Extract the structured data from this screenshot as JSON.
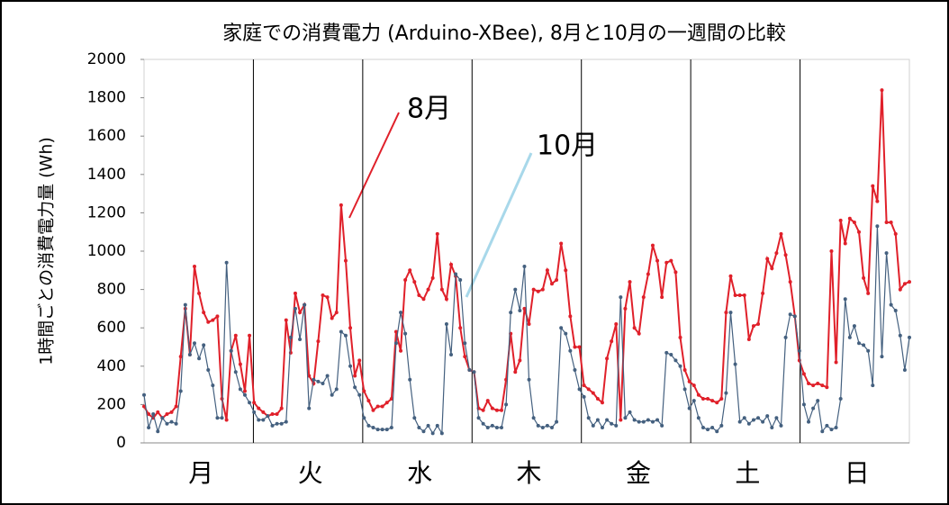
{
  "chart_data": {
    "type": "line",
    "title": "家庭での消費電力 (Arduino-XBee), 8月と10月の一週間の比較",
    "y_label": "1時間ごとの消費電力量 (Wh)",
    "categories": [
      null,
      null,
      null,
      null,
      null,
      null,
      null,
      null,
      null,
      null,
      null,
      null,
      "月",
      null,
      null,
      null,
      null,
      null,
      null,
      null,
      null,
      null,
      null,
      null,
      null,
      null,
      null,
      null,
      null,
      null,
      null,
      null,
      null,
      null,
      null,
      null,
      "火",
      null,
      null,
      null,
      null,
      null,
      null,
      null,
      null,
      null,
      null,
      null,
      null,
      null,
      null,
      null,
      null,
      null,
      null,
      null,
      null,
      null,
      null,
      null,
      "水",
      null,
      null,
      null,
      null,
      null,
      null,
      null,
      null,
      null,
      null,
      null,
      null,
      null,
      null,
      null,
      null,
      null,
      null,
      null,
      null,
      null,
      null,
      null,
      "木",
      null,
      null,
      null,
      null,
      null,
      null,
      null,
      null,
      null,
      null,
      null,
      null,
      null,
      null,
      null,
      null,
      null,
      null,
      null,
      null,
      null,
      null,
      null,
      "金",
      null,
      null,
      null,
      null,
      null,
      null,
      null,
      null,
      null,
      null,
      null,
      null,
      null,
      null,
      null,
      null,
      null,
      null,
      null,
      null,
      null,
      null,
      null,
      "土",
      null,
      null,
      null,
      null,
      null,
      null,
      null,
      null,
      null,
      null,
      null,
      null,
      null,
      null,
      null,
      null,
      null,
      null,
      null,
      null,
      null,
      null,
      null,
      "日",
      null,
      null,
      null,
      null,
      null,
      null,
      null,
      null,
      null,
      null,
      null
    ],
    "series": [
      {
        "name": "8月",
        "color": "#e0202a",
        "label_color": "#e0202a",
        "values": [
          190,
          150,
          130,
          160,
          130,
          150,
          160,
          190,
          450,
          700,
          460,
          920,
          780,
          680,
          630,
          640,
          660,
          230,
          120,
          480,
          560,
          410,
          270,
          560,
          210,
          180,
          160,
          140,
          150,
          150,
          180,
          640,
          470,
          780,
          680,
          720,
          350,
          310,
          530,
          770,
          760,
          650,
          680,
          1240,
          950,
          600,
          350,
          430,
          270,
          220,
          170,
          190,
          190,
          210,
          230,
          580,
          480,
          850,
          900,
          840,
          770,
          750,
          800,
          860,
          1090,
          800,
          750,
          930,
          870,
          600,
          450,
          380,
          370,
          180,
          170,
          220,
          180,
          170,
          170,
          330,
          570,
          370,
          430,
          700,
          620,
          800,
          790,
          800,
          900,
          830,
          850,
          1040,
          900,
          660,
          500,
          500,
          300,
          280,
          260,
          230,
          210,
          440,
          530,
          620,
          120,
          700,
          840,
          600,
          570,
          760,
          880,
          1030,
          950,
          760,
          940,
          950,
          890,
          550,
          380,
          320,
          300,
          250,
          230,
          230,
          220,
          210,
          230,
          680,
          870,
          770,
          770,
          770,
          540,
          610,
          620,
          780,
          960,
          910,
          990,
          1090,
          980,
          840,
          660,
          430,
          360,
          310,
          300,
          310,
          300,
          290,
          1000,
          420,
          1160,
          1040,
          1170,
          1150,
          1100,
          860,
          780,
          1340,
          1260,
          1840,
          1150,
          1150,
          1090,
          800,
          830,
          840
        ]
      },
      {
        "name": "10月",
        "color": "#44607f",
        "label_color": "#2aa8d8",
        "values": [
          250,
          80,
          150,
          60,
          130,
          100,
          110,
          100,
          270,
          720,
          460,
          520,
          440,
          510,
          380,
          300,
          130,
          130,
          940,
          480,
          370,
          280,
          250,
          210,
          160,
          120,
          120,
          140,
          90,
          100,
          100,
          110,
          550,
          700,
          540,
          720,
          180,
          330,
          320,
          310,
          350,
          250,
          280,
          580,
          560,
          400,
          290,
          250,
          130,
          90,
          80,
          70,
          70,
          70,
          80,
          520,
          680,
          570,
          330,
          130,
          80,
          60,
          90,
          50,
          90,
          50,
          620,
          460,
          880,
          850,
          520,
          380,
          370,
          130,
          100,
          80,
          90,
          80,
          80,
          200,
          680,
          800,
          690,
          920,
          330,
          130,
          90,
          80,
          90,
          80,
          110,
          600,
          570,
          480,
          380,
          280,
          240,
          130,
          90,
          120,
          80,
          120,
          100,
          90,
          760,
          130,
          160,
          120,
          110,
          110,
          120,
          110,
          120,
          90,
          470,
          460,
          430,
          400,
          280,
          180,
          220,
          130,
          80,
          70,
          80,
          60,
          90,
          260,
          680,
          410,
          110,
          130,
          100,
          120,
          130,
          110,
          140,
          80,
          130,
          90,
          550,
          670,
          660,
          480,
          200,
          110,
          180,
          220,
          60,
          90,
          70,
          80,
          230,
          750,
          550,
          610,
          520,
          510,
          480,
          300,
          1130,
          450,
          990,
          720,
          690,
          560,
          380,
          550
        ]
      }
    ],
    "ylim": [
      0,
      2000
    ],
    "yticks": [
      0,
      200,
      400,
      600,
      800,
      1000,
      1200,
      1400,
      1600,
      1800,
      2000
    ],
    "grid": false
  }
}
